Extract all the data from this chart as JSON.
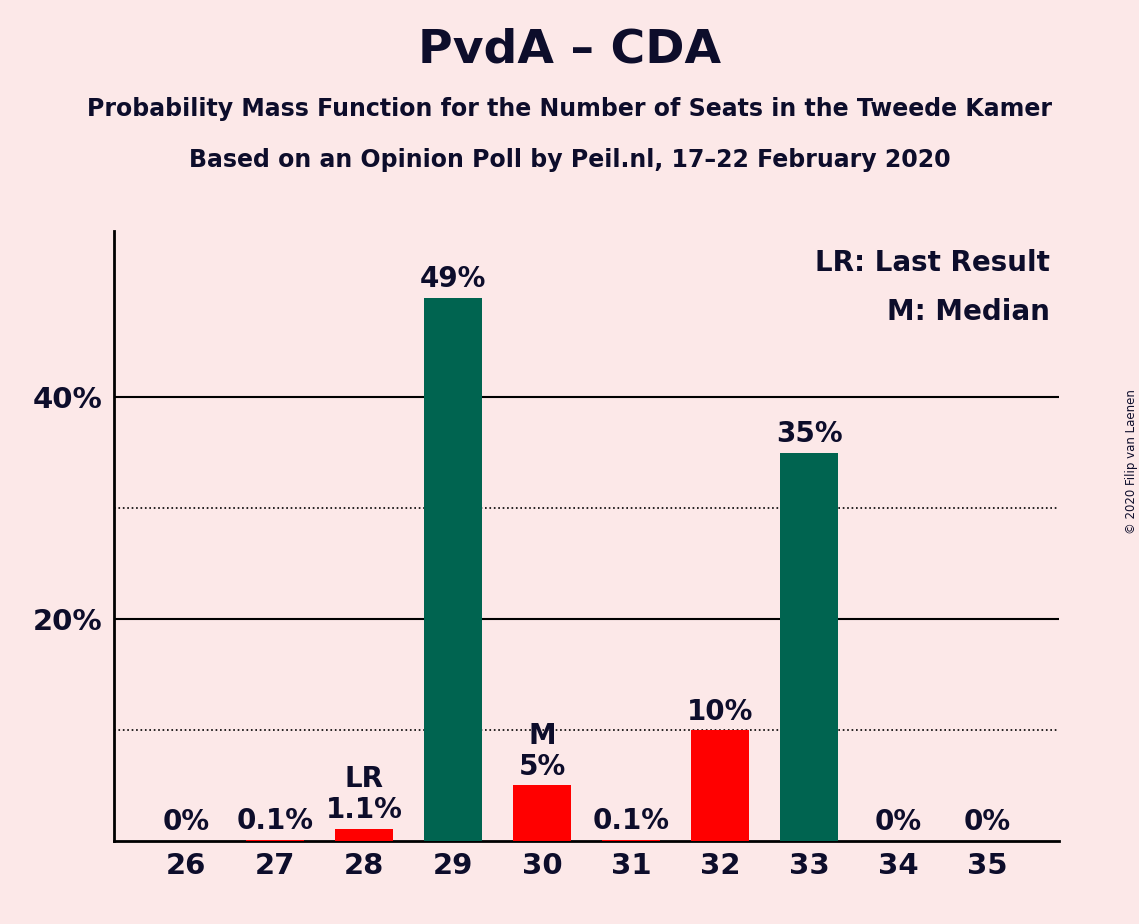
{
  "title": "PvdA – CDA",
  "subtitle1": "Probability Mass Function for the Number of Seats in the Tweede Kamer",
  "subtitle2": "Based on an Opinion Poll by Peil.nl, 17–22 February 2020",
  "copyright": "© 2020 Filip van Laenen",
  "legend_lr": "LR: Last Result",
  "legend_m": "M: Median",
  "background_color": "#fce8e8",
  "categories": [
    26,
    27,
    28,
    29,
    30,
    31,
    32,
    33,
    34,
    35
  ],
  "values": [
    0.0,
    0.1,
    1.1,
    49.0,
    5.0,
    0.1,
    10.0,
    35.0,
    0.0,
    0.0
  ],
  "labels": [
    "0%",
    "0.1%",
    "1.1%",
    "49%",
    "5%",
    "0.1%",
    "10%",
    "35%",
    "0%",
    "0%"
  ],
  "bar_colors": [
    "#ff0000",
    "#ff0000",
    "#ff0000",
    "#006450",
    "#ff0000",
    "#ff0000",
    "#ff0000",
    "#006450",
    "#ff0000",
    "#ff0000"
  ],
  "green_color": "#006450",
  "red_color": "#ff0000",
  "lr_seat": 28,
  "median_seat": 30,
  "lr_label": "LR",
  "median_label": "M",
  "ylim_max": 55,
  "solid_gridlines": [
    20,
    40
  ],
  "dotted_gridlines": [
    10,
    30
  ],
  "ytick_positions": [
    20,
    40
  ],
  "ytick_labels": [
    "20%",
    "40%"
  ],
  "title_fontsize": 34,
  "subtitle_fontsize": 17,
  "label_fontsize": 20,
  "tick_fontsize": 21,
  "legend_fontsize": 20,
  "annotation_fontsize": 20,
  "bar_width": 0.65,
  "text_color": "#0d0d2b"
}
